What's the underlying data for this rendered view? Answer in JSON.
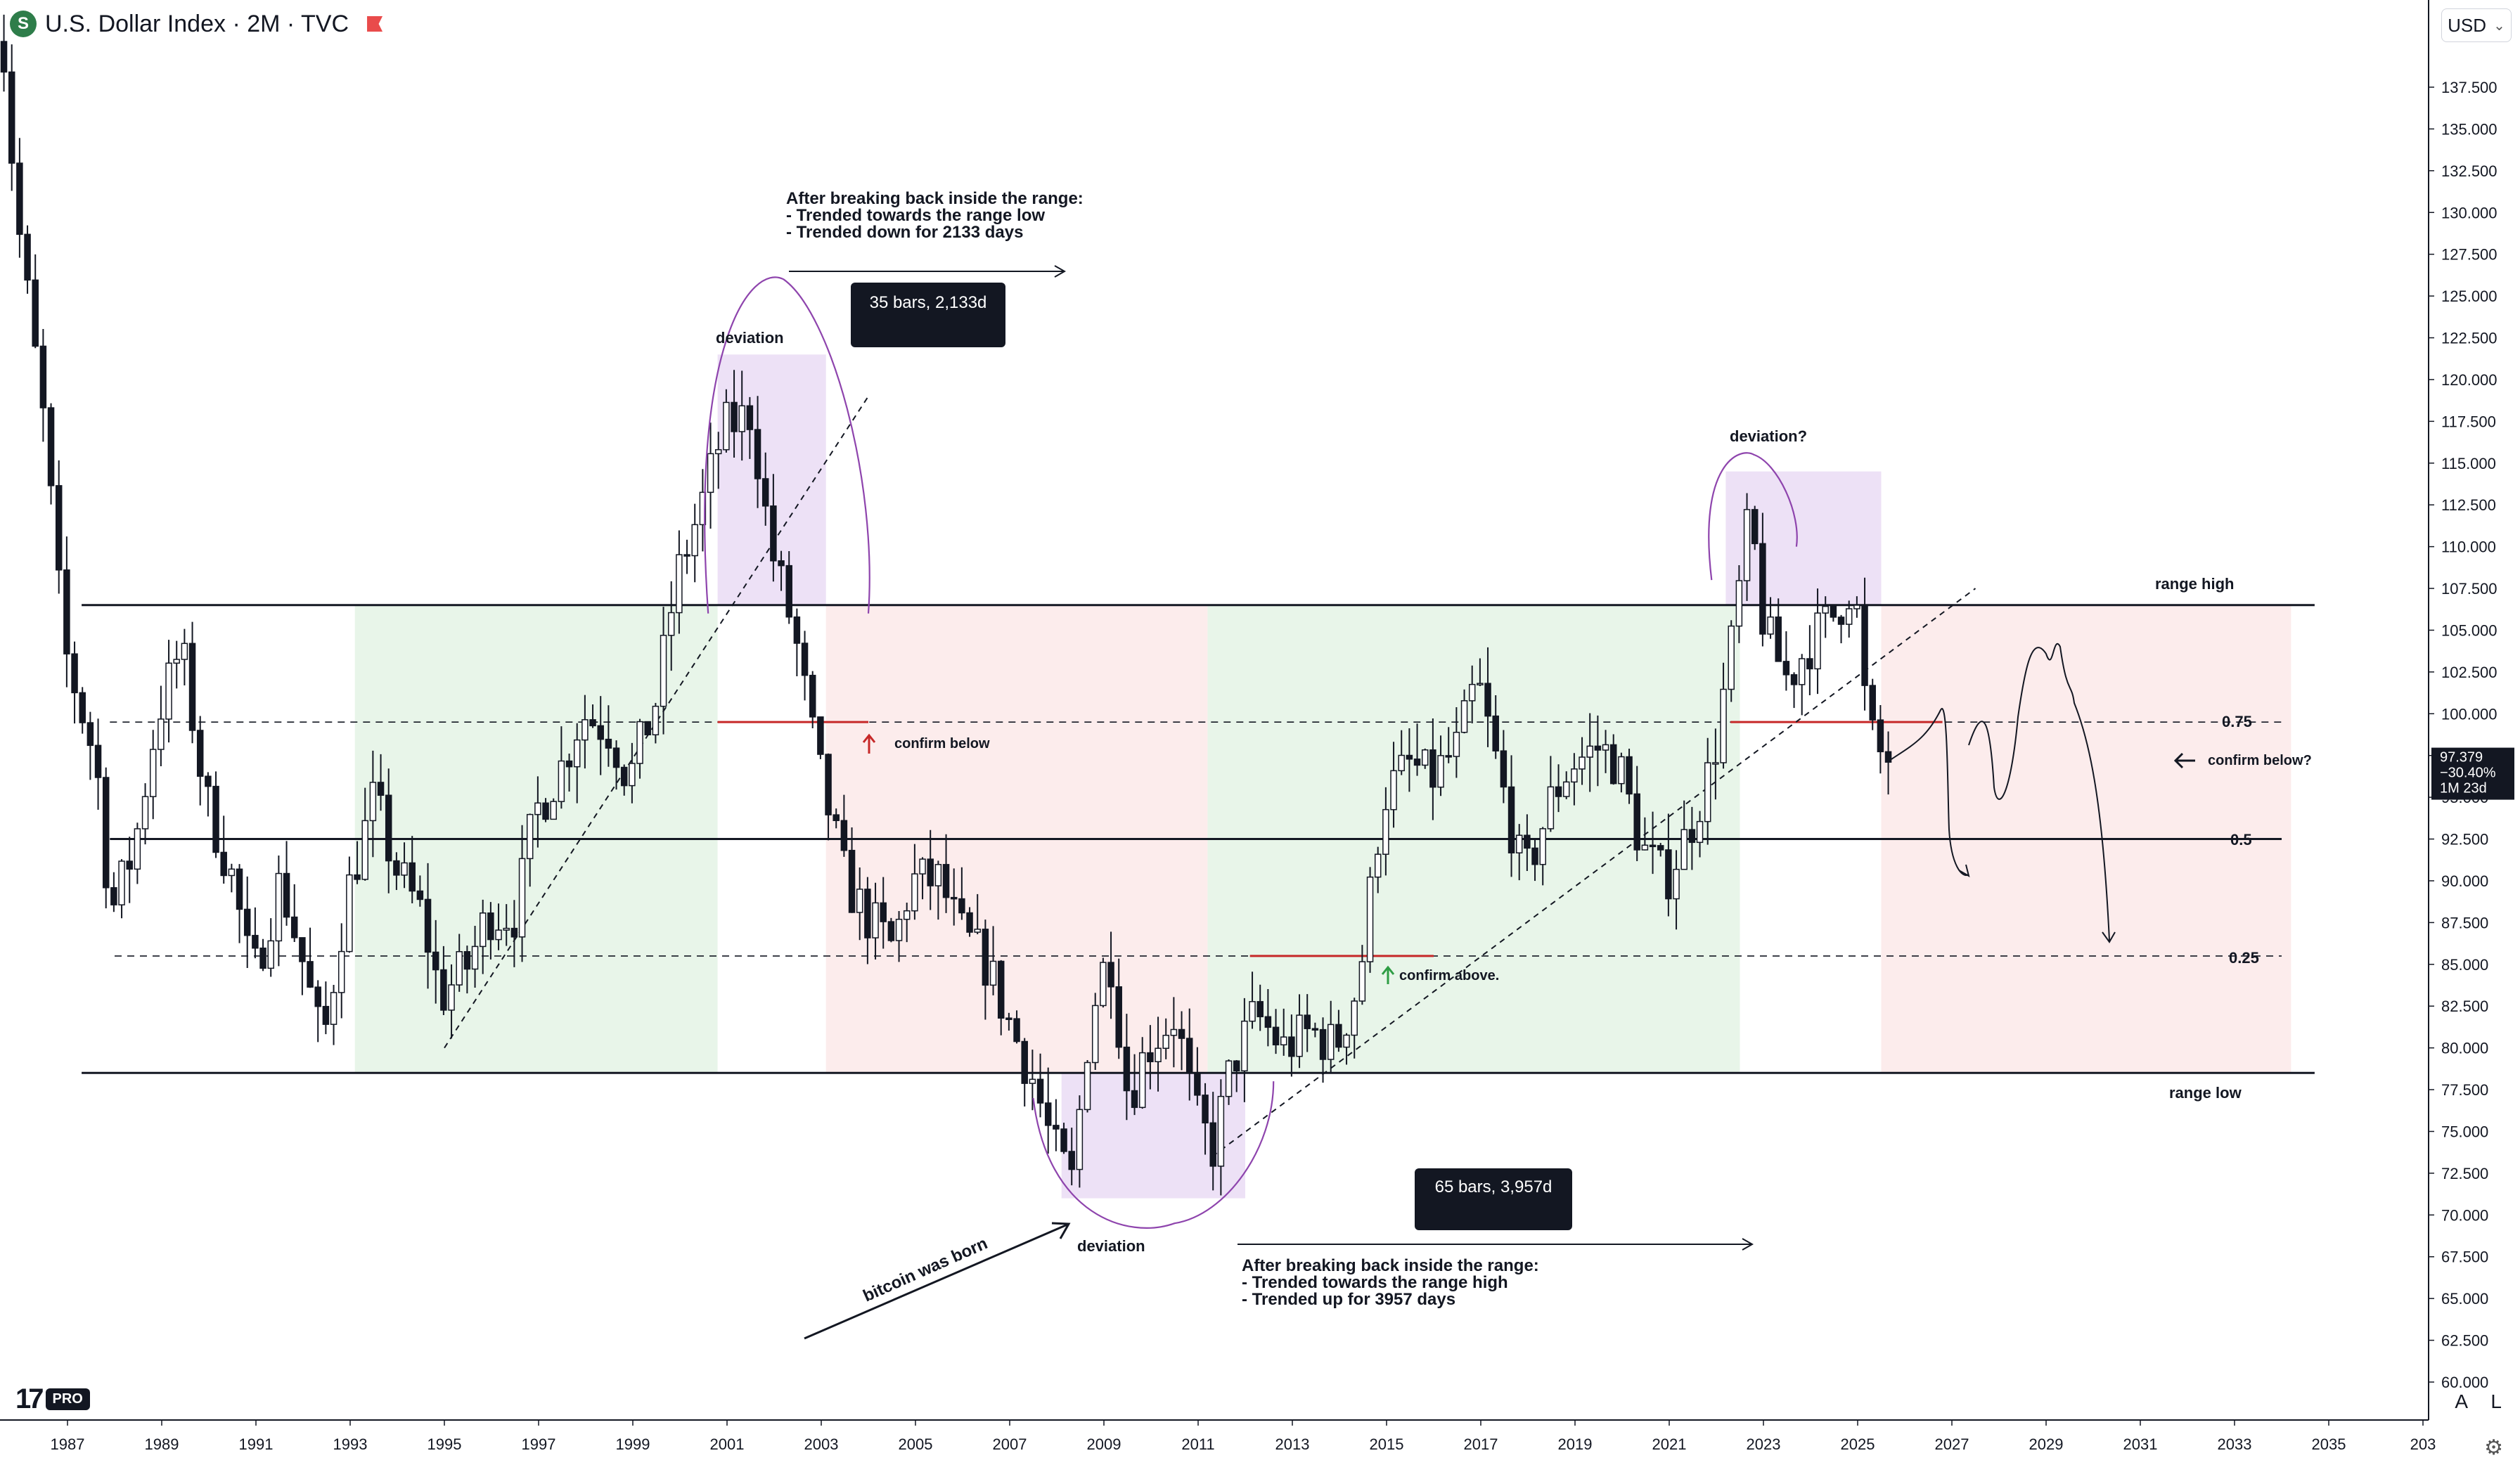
{
  "header": {
    "symbol_icon": "S",
    "title": "U.S. Dollar Index · 2M · TVC",
    "flag_icon": "red-flag-icon"
  },
  "currency": {
    "label": "USD",
    "icon": "chevron-down-icon"
  },
  "bottom": {
    "auto_label": "A",
    "log_label": "L",
    "settings_icon": "gear-icon",
    "logo_pro": "PRO"
  },
  "chart_data": {
    "type": "candlestick",
    "ylim": [
      60,
      140
    ],
    "xlim": [
      1985.4,
      2036.9
    ],
    "y_ticks": [
      "60.000",
      "62.500",
      "65.000",
      "67.500",
      "70.000",
      "72.500",
      "75.000",
      "77.500",
      "80.000",
      "82.500",
      "85.000",
      "87.500",
      "90.000",
      "92.500",
      "95.000",
      "97.500",
      "100.000",
      "102.500",
      "105.000",
      "107.500",
      "110.000",
      "112.500",
      "115.000",
      "117.500",
      "120.000",
      "122.500",
      "125.000",
      "127.500",
      "130.000",
      "132.500",
      "135.000",
      "137.500"
    ],
    "x_ticks": [
      "1987",
      "1989",
      "1991",
      "1993",
      "1995",
      "1997",
      "1999",
      "2001",
      "2003",
      "2005",
      "2007",
      "2009",
      "2011",
      "2013",
      "2015",
      "2017",
      "2019",
      "2021",
      "2023",
      "2025",
      "2027",
      "2029",
      "2031",
      "2033",
      "2035",
      "203"
    ],
    "price": {
      "value": "97.379",
      "change": "−30.40%",
      "countdown": "1M 23d",
      "y": 97.379,
      "color": "#131722"
    },
    "ohlc_path": [
      [
        1985.4,
        131
      ],
      [
        1985.6,
        144
      ],
      [
        1986.0,
        130
      ],
      [
        1986.6,
        117
      ],
      [
        1987.0,
        104
      ],
      [
        1987.7,
        97
      ],
      [
        1988.0,
        88
      ],
      [
        1988.5,
        92
      ],
      [
        1989.0,
        100
      ],
      [
        1989.5,
        104
      ],
      [
        1990.0,
        95
      ],
      [
        1990.6,
        90
      ],
      [
        1991.0,
        84
      ],
      [
        1991.6,
        90
      ],
      [
        1992.0,
        86
      ],
      [
        1992.5,
        80
      ],
      [
        1993.0,
        89
      ],
      [
        1993.6,
        95
      ],
      [
        1994.0,
        91
      ],
      [
        1994.6,
        88
      ],
      [
        1995.0,
        83
      ],
      [
        1995.6,
        85
      ],
      [
        1996.0,
        88
      ],
      [
        1996.6,
        88
      ],
      [
        1997.0,
        94
      ],
      [
        1997.6,
        97
      ],
      [
        1998.0,
        100
      ],
      [
        1998.6,
        99
      ],
      [
        1999.0,
        96
      ],
      [
        1999.6,
        101
      ],
      [
        2000.0,
        108
      ],
      [
        2000.6,
        113
      ],
      [
        2001.0,
        117
      ],
      [
        2001.6,
        118
      ],
      [
        2002.0,
        110
      ],
      [
        2002.5,
        105
      ],
      [
        2003.0,
        97
      ],
      [
        2003.6,
        90
      ],
      [
        2004.0,
        88
      ],
      [
        2004.6,
        86
      ],
      [
        2005.0,
        90
      ],
      [
        2005.6,
        90
      ],
      [
        2006.0,
        87
      ],
      [
        2006.6,
        85
      ],
      [
        2007.0,
        82
      ],
      [
        2007.6,
        78
      ],
      [
        2008.0,
        74
      ],
      [
        2008.4,
        72
      ],
      [
        2008.8,
        82
      ],
      [
        2009.2,
        86
      ],
      [
        2009.6,
        77
      ],
      [
        2010.0,
        80
      ],
      [
        2010.6,
        82
      ],
      [
        2011.0,
        76
      ],
      [
        2011.4,
        74
      ],
      [
        2011.8,
        79
      ],
      [
        2012.3,
        82
      ],
      [
        2012.9,
        80
      ],
      [
        2013.5,
        81
      ],
      [
        2014.0,
        80
      ],
      [
        2014.5,
        84
      ],
      [
        2015.0,
        95
      ],
      [
        2015.6,
        97
      ],
      [
        2016.0,
        96
      ],
      [
        2016.6,
        98
      ],
      [
        2017.0,
        102
      ],
      [
        2017.5,
        96
      ],
      [
        2018.0,
        90
      ],
      [
        2018.6,
        95
      ],
      [
        2019.0,
        97
      ],
      [
        2019.6,
        98
      ],
      [
        2020.0,
        97
      ],
      [
        2020.5,
        92
      ],
      [
        2021.0,
        90
      ],
      [
        2021.5,
        93
      ],
      [
        2022.0,
        97
      ],
      [
        2022.4,
        104
      ],
      [
        2022.8,
        112
      ],
      [
        2023.1,
        105
      ],
      [
        2023.6,
        102
      ],
      [
        2024.0,
        104
      ],
      [
        2024.6,
        106
      ],
      [
        2025.0,
        108
      ],
      [
        2025.3,
        99
      ],
      [
        2025.6,
        97.4
      ]
    ],
    "levels": [
      {
        "name": "range high",
        "y": 106.5,
        "from": 1987.3,
        "to": 2034.7,
        "style": "solid"
      },
      {
        "name": "0.75",
        "y": 99.5,
        "from": 1987.9,
        "to": 2034.0,
        "style": "dashed"
      },
      {
        "name": "0.5",
        "y": 92.5,
        "from": 1987.9,
        "to": 2034.0,
        "style": "solid"
      },
      {
        "name": "0.25",
        "y": 85.5,
        "from": 1988.0,
        "to": 2034.0,
        "style": "dashed"
      },
      {
        "name": "range low",
        "y": 78.5,
        "from": 1987.3,
        "to": 2034.7,
        "style": "solid"
      }
    ],
    "labels": {
      "range_high": "range high",
      "range_low": "range low",
      "lvl_075": "0.75",
      "lvl_05": "0.5",
      "lvl_025": "0.25",
      "deviation_top": "deviation",
      "deviation_bottom": "deviation",
      "deviation_q": "deviation?",
      "confirm_below": "confirm below",
      "confirm_above": "confirm above.",
      "confirm_below_q": "confirm below?",
      "bitcoin": "bitcoin was born",
      "bars_top": "35 bars, 2,133d",
      "bars_bottom": "65 bars, 3,957d",
      "note_top_1": "After breaking back inside the range:",
      "note_top_2": "- Trended towards the range low",
      "note_top_3": "- Trended down for 2133 days",
      "note_bottom_1": "After breaking back inside the range:",
      "note_bottom_2": "- Trended towards the range high",
      "note_bottom_3": "- Trended up for 3957 days"
    },
    "colors": {
      "green_zone": "#e8f5e9",
      "red_zone": "#fcecec",
      "purple_zone": "#ede1f6",
      "purple_line": "#8e44ad",
      "red_line": "#c62828",
      "green_arrow": "#2e9d44"
    }
  }
}
